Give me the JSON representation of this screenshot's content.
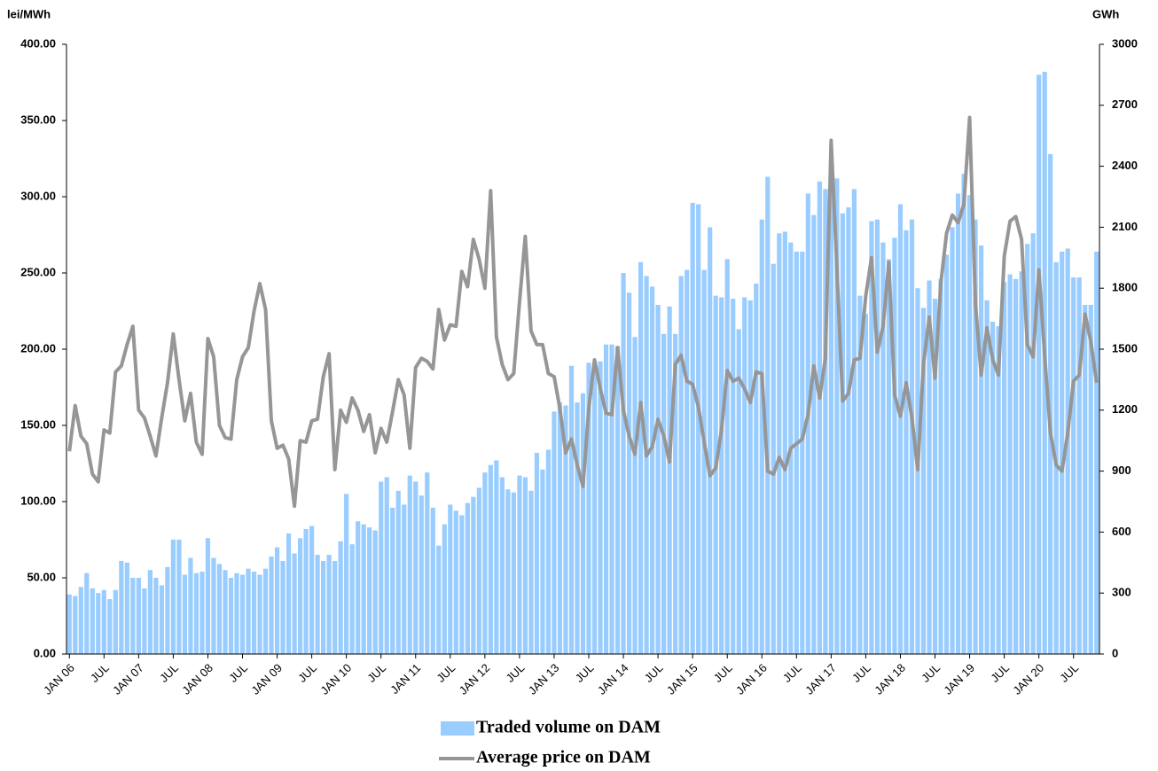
{
  "chart_data": {
    "type": "bar-line",
    "y_label": "lei/MWh",
    "y2_label": "GWh",
    "categories": [
      "JAN 06",
      null,
      null,
      null,
      null,
      null,
      "JUL",
      null,
      null,
      null,
      null,
      null,
      "JAN 07",
      null,
      null,
      null,
      null,
      null,
      "JUL",
      null,
      null,
      null,
      null,
      null,
      "JAN 08",
      null,
      null,
      null,
      null,
      null,
      "JUL",
      null,
      null,
      null,
      null,
      null,
      "JAN 09",
      null,
      null,
      null,
      null,
      null,
      "JUL",
      null,
      null,
      null,
      null,
      null,
      "JAN 10",
      null,
      null,
      null,
      null,
      null,
      "JUL",
      null,
      null,
      null,
      null,
      null,
      "JAN 11",
      null,
      null,
      null,
      null,
      null,
      "JUL",
      null,
      null,
      null,
      null,
      null,
      "JAN 12",
      null,
      null,
      null,
      null,
      null,
      "JUL",
      null,
      null,
      null,
      null,
      null,
      "JAN 13",
      null,
      null,
      null,
      null,
      null,
      "JUL",
      null,
      null,
      null,
      null,
      null,
      "JAN 14",
      null,
      null,
      null,
      null,
      null,
      "JUL",
      null,
      null,
      null,
      null,
      null,
      "JAN 15",
      null,
      null,
      null,
      null,
      null,
      "JUL",
      null,
      null,
      null,
      null,
      null,
      "JAN 16",
      null,
      null,
      null,
      null,
      null,
      "JUL",
      null,
      null,
      null,
      null,
      null,
      "JAN 17",
      null,
      null,
      null,
      null,
      null,
      "JUL",
      null,
      null,
      null,
      null,
      null,
      "JAN 18",
      null,
      null,
      null,
      null,
      null,
      "JUL",
      null,
      null,
      null,
      null,
      null,
      "JAN 19",
      null,
      null,
      null,
      null,
      null,
      "JUL",
      null,
      null,
      null,
      null,
      null,
      "JAN 20",
      null,
      null,
      null,
      null,
      null,
      "JUL",
      null,
      null,
      null,
      null
    ],
    "series": [
      {
        "name": "Traded volume on DAM",
        "kind": "bar",
        "axis": "y2",
        "color": "#99ccff",
        "values": [
          293,
          285,
          330,
          398,
          323,
          300,
          315,
          270,
          315,
          458,
          450,
          375,
          375,
          323,
          413,
          375,
          338,
          428,
          563,
          563,
          390,
          473,
          398,
          405,
          570,
          473,
          443,
          413,
          375,
          398,
          390,
          420,
          405,
          390,
          420,
          480,
          525,
          458,
          593,
          495,
          570,
          615,
          630,
          488,
          458,
          488,
          458,
          555,
          788,
          540,
          653,
          638,
          623,
          608,
          848,
          870,
          720,
          803,
          735,
          878,
          848,
          780,
          893,
          720,
          533,
          638,
          735,
          705,
          683,
          743,
          773,
          818,
          893,
          930,
          953,
          870,
          810,
          795,
          878,
          870,
          803,
          990,
          908,
          1005,
          1193,
          1238,
          1223,
          1418,
          1238,
          1283,
          1433,
          1395,
          1440,
          1523,
          1523,
          1515,
          1875,
          1778,
          1560,
          1928,
          1860,
          1808,
          1718,
          1575,
          1710,
          1575,
          1860,
          1890,
          2220,
          2213,
          1890,
          2100,
          1763,
          1755,
          1943,
          1748,
          1598,
          1755,
          1740,
          1823,
          2138,
          2348,
          1920,
          2070,
          2078,
          2025,
          1980,
          1980,
          2265,
          2160,
          2325,
          2288,
          2333,
          2340,
          2168,
          2198,
          2288,
          1763,
          1673,
          2130,
          2138,
          2025,
          1943,
          2048,
          2213,
          2085,
          2138,
          1800,
          1703,
          1838,
          1748,
          1845,
          1965,
          2100,
          2265,
          2363,
          2258,
          2138,
          2010,
          1740,
          1635,
          1613,
          1830,
          1868,
          1845,
          1883,
          2018,
          2070,
          2850,
          2865,
          2460,
          1928,
          1980,
          1995,
          1853,
          1853,
          1718,
          1718,
          1980
        ]
      },
      {
        "name": "Average price on DAM",
        "kind": "line",
        "color": "#969696",
        "values": [
          133,
          163,
          143,
          138,
          118,
          113,
          147,
          145,
          185,
          189,
          203,
          215,
          160,
          155,
          143,
          130,
          155,
          178,
          210,
          180,
          153,
          171,
          139,
          131,
          207,
          195,
          150,
          142,
          141,
          180,
          195,
          201,
          225,
          243,
          226,
          153,
          135,
          137,
          128,
          97,
          140,
          139,
          153,
          154,
          182,
          197,
          121,
          160,
          152,
          168,
          160,
          146,
          157,
          132,
          148,
          139,
          159,
          180,
          170,
          135,
          188,
          194,
          192,
          187,
          226,
          206,
          216,
          215,
          251,
          241,
          272,
          259,
          240,
          304,
          208,
          190,
          180,
          184,
          231,
          274,
          212,
          203,
          203,
          184,
          182,
          161,
          132,
          141,
          124,
          110,
          161,
          193,
          174,
          158,
          157,
          201,
          160,
          143,
          131,
          165,
          130,
          136,
          154,
          143,
          126,
          190,
          196,
          179,
          177,
          162,
          139,
          117,
          122,
          147,
          186,
          179,
          181,
          174,
          165,
          185,
          184,
          120,
          118,
          129,
          121,
          135,
          138,
          141,
          157,
          189,
          168,
          194,
          337,
          253,
          166,
          171,
          193,
          194,
          235,
          260,
          198,
          215,
          257,
          170,
          156,
          178,
          155,
          121,
          190,
          221,
          181,
          243,
          276,
          288,
          283,
          295,
          352,
          230,
          183,
          214,
          193,
          183,
          261,
          284,
          287,
          272,
          203,
          195,
          252,
          196,
          145,
          124,
          120,
          145,
          179,
          183,
          223,
          205,
          178
        ]
      }
    ],
    "ylim": [
      0,
      400
    ],
    "yticks": [
      {
        "value": 0,
        "label": "0.00"
      },
      {
        "value": 50,
        "label": "50.00"
      },
      {
        "value": 100,
        "label": "100.00"
      },
      {
        "value": 150,
        "label": "150.00"
      },
      {
        "value": 200,
        "label": "200.00"
      },
      {
        "value": 250,
        "label": "250.00"
      },
      {
        "value": 300,
        "label": "300.00"
      },
      {
        "value": 350,
        "label": "350.00"
      },
      {
        "value": 400,
        "label": "400.00"
      }
    ],
    "y2lim": [
      0,
      3000
    ],
    "y2ticks": [
      0,
      300,
      600,
      900,
      1200,
      1500,
      1800,
      2100,
      2400,
      2700,
      3000
    ]
  }
}
